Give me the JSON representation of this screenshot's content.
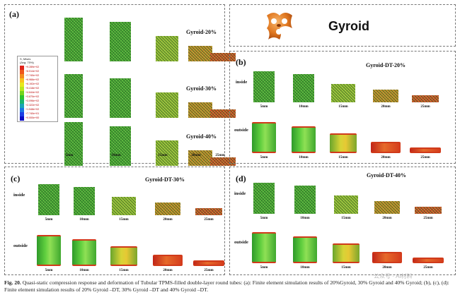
{
  "panel_a": {
    "label": "(a)",
    "rows": [
      {
        "title": "Gyroid-20%"
      },
      {
        "title": "Gyroid-30%"
      },
      {
        "title": "Gyroid-40%"
      }
    ],
    "legend": {
      "title_lines": [
        "S, Mises",
        "(Avg: 75%)"
      ],
      "ticks": [
        "+9.289e+02",
        "+8.514e+02",
        "+7.740e+02",
        "+6.966e+02",
        "+6.192e+02",
        "+5.418e+02",
        "+4.644e+02",
        "+3.870e+02",
        "+3.096e+02",
        "+2.322e+02",
        "+1.548e+02",
        "+7.740e+01",
        "+0.000e+00"
      ],
      "colors": [
        "#e0241c",
        "#f0561c",
        "#f48a1e",
        "#f8c41c",
        "#e8e81c",
        "#b8e81c",
        "#74d41c",
        "#2cc42c",
        "#1cb46c",
        "#1ca4b4",
        "#1c74e4",
        "#1c3ce4",
        "#0c0cc4"
      ]
    }
  },
  "gyroid_header": {
    "title": "Gyroid",
    "icon": "gyroid-unit-cell-icon"
  },
  "panel_b": {
    "label": "(b)",
    "title": "Gyroid-DT-20%"
  },
  "panel_c": {
    "label": "(c)",
    "title": "Gyroid-DT-30%"
  },
  "panel_d": {
    "label": "(d)",
    "title": "Gyroid-DT-40%"
  },
  "row_labels": {
    "inside": "inside",
    "outside": "outside"
  },
  "displacements": [
    "5mm",
    "10mm",
    "15mm",
    "20mm",
    "25mm"
  ],
  "caption": {
    "label": "Fig. 20.",
    "text": " Quasi-static compression response and deformation of Tubular TPMS-filled double-layer round tubes: (a): Finite element simulation results of 20%Gyroid, 30% Gyroid and 40% Gyroid; (b), (c), (d): Finite element simulation results of 20% Gyroid –DT, 30% Gyroid –DT and 40% Gyroid –DT."
  },
  "watermark": "公众号 · AI材料"
}
